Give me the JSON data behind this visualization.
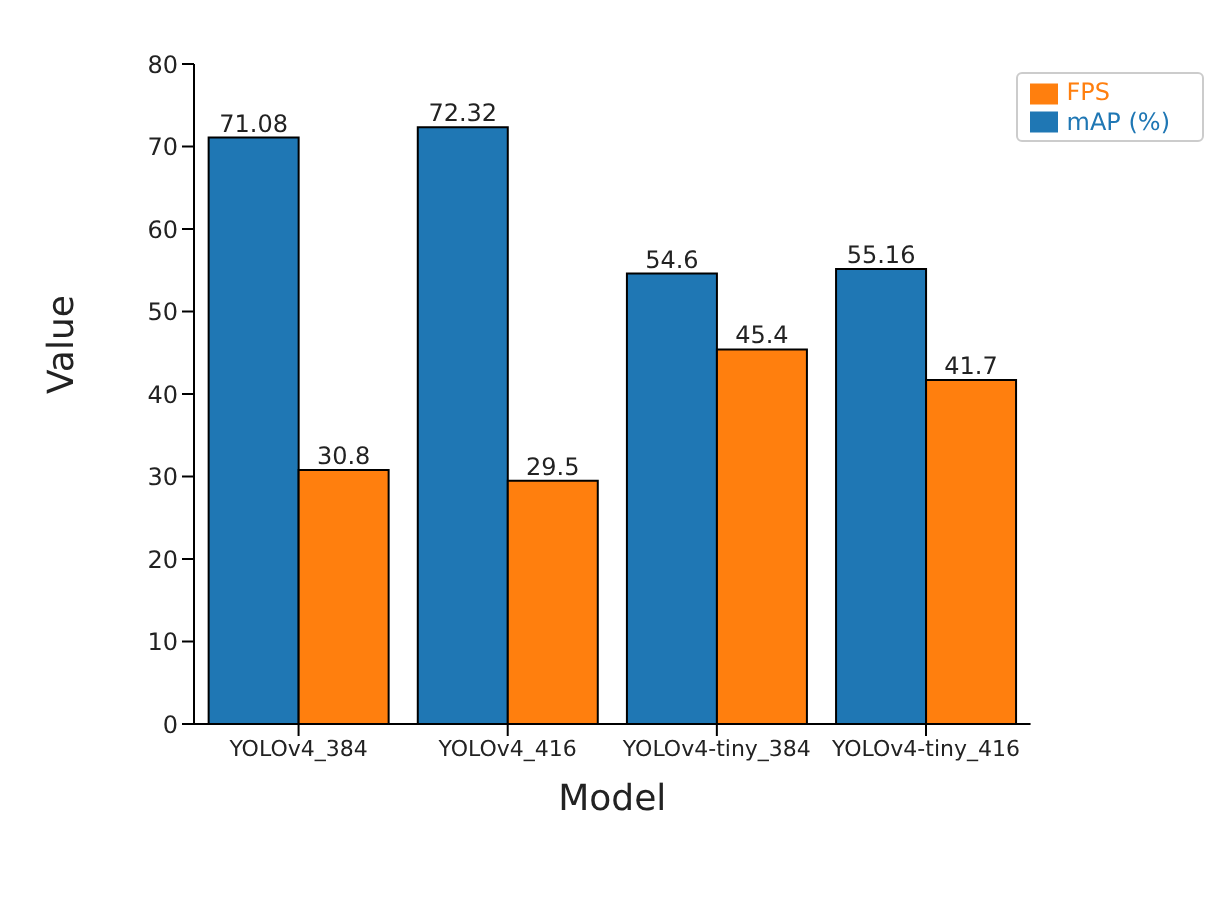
{
  "chart_data": {
    "type": "bar",
    "xlabel": "Model",
    "ylabel": "Value",
    "categories": [
      "YOLOv4_384",
      "YOLOv4_416",
      "YOLOv4-tiny_384",
      "YOLOv4-tiny_416"
    ],
    "series": [
      {
        "name": "mAP (%)",
        "color": "#1f77b4",
        "values": [
          71.08,
          72.32,
          54.6,
          55.16
        ]
      },
      {
        "name": "FPS",
        "color": "#ff7f0e",
        "values": [
          30.8,
          29.5,
          45.4,
          41.7
        ]
      }
    ],
    "ylim": [
      0,
      80
    ],
    "yticks": [
      0,
      10,
      20,
      30,
      40,
      50,
      60,
      70,
      80
    ],
    "data_labels": true,
    "legend": "top right",
    "grid": false
  }
}
